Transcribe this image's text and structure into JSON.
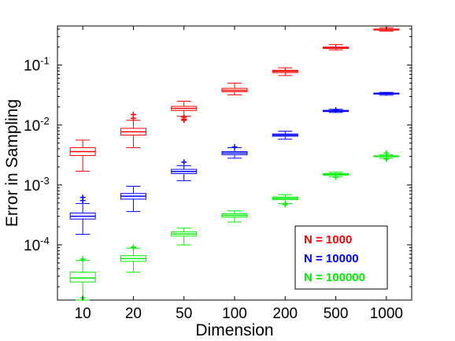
{
  "chart_data": {
    "type": "box",
    "title": "",
    "xlabel": "Dimension",
    "ylabel": "Error in Sampling",
    "yscale": "log",
    "ylim": [
      1.2e-05,
      0.45
    ],
    "categories": [
      "10",
      "20",
      "50",
      "100",
      "200",
      "500",
      "1000"
    ],
    "yticks": [
      {
        "value": 0.1,
        "base": "10",
        "exp": "-1"
      },
      {
        "value": 0.01,
        "base": "10",
        "exp": "-2"
      },
      {
        "value": 0.001,
        "base": "10",
        "exp": "-3"
      },
      {
        "value": 0.0001,
        "base": "10",
        "exp": "-4"
      }
    ],
    "grid": false,
    "legend_position": "bottom-right",
    "series": [
      {
        "name": "N = 1000",
        "color": "#ff0000",
        "boxes": [
          {
            "min": 0.0017,
            "q1": 0.0031,
            "median": 0.0036,
            "q3": 0.0042,
            "max": 0.0056,
            "outliers": []
          },
          {
            "min": 0.0042,
            "q1": 0.0068,
            "median": 0.0077,
            "q3": 0.0088,
            "max": 0.012,
            "outliers": [
              0.013,
              0.015
            ]
          },
          {
            "min": 0.014,
            "q1": 0.0175,
            "median": 0.019,
            "q3": 0.0205,
            "max": 0.025,
            "outliers": [
              0.012,
              0.0125,
              0.0135
            ]
          },
          {
            "min": 0.032,
            "q1": 0.036,
            "median": 0.038,
            "q3": 0.041,
            "max": 0.05,
            "outliers": []
          },
          {
            "min": 0.067,
            "q1": 0.075,
            "median": 0.079,
            "q3": 0.082,
            "max": 0.09,
            "outliers": []
          },
          {
            "min": 0.18,
            "q1": 0.19,
            "median": 0.195,
            "q3": 0.2,
            "max": 0.22,
            "outliers": []
          },
          {
            "min": 0.37,
            "q1": 0.385,
            "median": 0.39,
            "q3": 0.4,
            "max": 0.42,
            "outliers": []
          }
        ]
      },
      {
        "name": "N = 10000",
        "color": "#0000ff",
        "boxes": [
          {
            "min": 0.00015,
            "q1": 0.00027,
            "median": 0.0003,
            "q3": 0.00034,
            "max": 0.00049,
            "outliers": [
              0.00055,
              0.00062
            ]
          },
          {
            "min": 0.00036,
            "q1": 0.00058,
            "median": 0.00065,
            "q3": 0.00072,
            "max": 0.00095,
            "outliers": []
          },
          {
            "min": 0.00118,
            "q1": 0.00155,
            "median": 0.00168,
            "q3": 0.00182,
            "max": 0.0021,
            "outliers": [
              0.0024
            ]
          },
          {
            "min": 0.0028,
            "q1": 0.0032,
            "median": 0.0034,
            "q3": 0.0036,
            "max": 0.0042,
            "outliers": [
              0.0043
            ]
          },
          {
            "min": 0.0058,
            "q1": 0.0065,
            "median": 0.0068,
            "q3": 0.0071,
            "max": 0.0079,
            "outliers": []
          },
          {
            "min": 0.0162,
            "q1": 0.0168,
            "median": 0.0172,
            "q3": 0.0176,
            "max": 0.0183,
            "outliers": [
              0.018
            ]
          },
          {
            "min": 0.0315,
            "q1": 0.0328,
            "median": 0.0335,
            "q3": 0.0342,
            "max": 0.0352,
            "outliers": []
          }
        ]
      },
      {
        "name": "N = 100000",
        "color": "#00ee00",
        "boxes": [
          {
            "min": 1.2e-05,
            "q1": 2.4e-05,
            "median": 2.8e-05,
            "q3": 3.5e-05,
            "max": 5.5e-05,
            "outliers": [
              5.8e-05,
              1.3e-05
            ]
          },
          {
            "min": 3.5e-05,
            "q1": 5.3e-05,
            "median": 5.9e-05,
            "q3": 6.6e-05,
            "max": 8.8e-05,
            "outliers": [
              9.2e-05
            ]
          },
          {
            "min": 0.0001,
            "q1": 0.00014,
            "median": 0.000152,
            "q3": 0.000165,
            "max": 0.00019,
            "outliers": []
          },
          {
            "min": 0.00024,
            "q1": 0.00029,
            "median": 0.00031,
            "q3": 0.00033,
            "max": 0.00037,
            "outliers": []
          },
          {
            "min": 0.00049,
            "q1": 0.00057,
            "median": 0.0006,
            "q3": 0.00063,
            "max": 0.00069,
            "outliers": [
              0.00047
            ]
          },
          {
            "min": 0.00138,
            "q1": 0.00146,
            "median": 0.0015,
            "q3": 0.00155,
            "max": 0.00163,
            "outliers": [
              0.00135
            ]
          },
          {
            "min": 0.0028,
            "q1": 0.00296,
            "median": 0.003,
            "q3": 0.00306,
            "max": 0.00318,
            "outliers": [
              0.0027,
              0.0034
            ]
          }
        ]
      }
    ]
  }
}
